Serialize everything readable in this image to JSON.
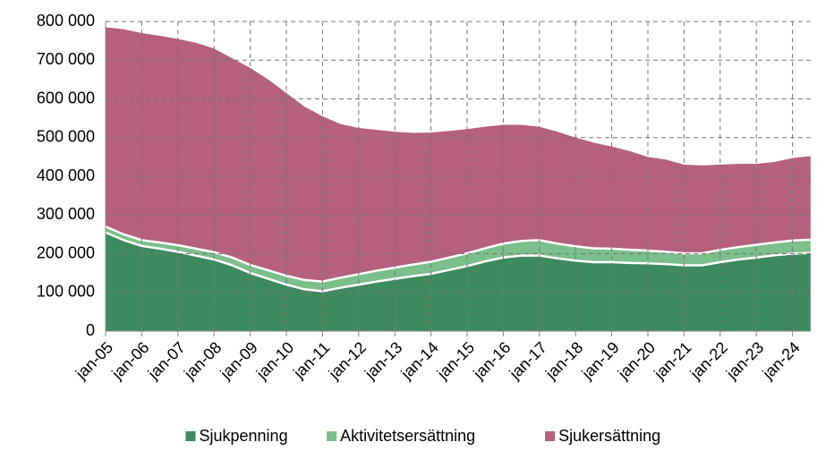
{
  "chart_data": {
    "type": "stacked-area",
    "categories": [
      "jan-05",
      null,
      "jan-06",
      null,
      "jan-07",
      null,
      "jan-08",
      null,
      "jan-09",
      null,
      "jan-10",
      null,
      "jan-11",
      null,
      "jan-12",
      null,
      "jan-13",
      null,
      "jan-14",
      null,
      "jan-15",
      null,
      "jan-16",
      null,
      "jan-17",
      null,
      "jan-18",
      null,
      "jan-19",
      null,
      "jan-20",
      null,
      "jan-21",
      null,
      "jan-22",
      null,
      "jan-23",
      null,
      "jan-24",
      null
    ],
    "series": [
      {
        "name": "Sjukpenning",
        "color": "#3d8a5f",
        "values": [
          255000,
          235000,
          220000,
          213000,
          205000,
          195000,
          185000,
          170000,
          150000,
          135000,
          120000,
          108000,
          103000,
          112000,
          120000,
          128000,
          135000,
          142000,
          148000,
          158000,
          168000,
          180000,
          190000,
          195000,
          195000,
          188000,
          182000,
          178000,
          178000,
          176000,
          175000,
          173000,
          170000,
          170000,
          178000,
          185000,
          190000,
          196000,
          200000,
          202000
        ]
      },
      {
        "name": "Aktivitetsersättning",
        "color": "#7bbf8c",
        "values": [
          15000,
          15000,
          15000,
          16000,
          17000,
          18000,
          19000,
          20000,
          21000,
          22000,
          23000,
          24000,
          25000,
          26000,
          27000,
          28000,
          29000,
          30000,
          31000,
          32000,
          33000,
          34000,
          36000,
          38000,
          40000,
          38000,
          37000,
          36000,
          35000,
          34000,
          33000,
          32000,
          31000,
          31000,
          32000,
          32000,
          33000,
          33000,
          34000,
          34000
        ]
      },
      {
        "name": "Sjukersättning",
        "color": "#b5607d",
        "values": [
          515000,
          530000,
          535000,
          534000,
          533000,
          532000,
          526000,
          515000,
          509000,
          493000,
          472000,
          448000,
          427000,
          397000,
          378000,
          364000,
          351000,
          340000,
          334000,
          327000,
          321000,
          314000,
          307000,
          300000,
          293000,
          289000,
          281000,
          273000,
          264000,
          255000,
          242000,
          238000,
          229000,
          227000,
          220000,
          215000,
          209000,
          208000,
          213000,
          216000
        ]
      }
    ],
    "ylim": [
      0,
      800000
    ],
    "yticks": [
      0,
      {
        "value": 100000,
        "label": "100 000"
      },
      {
        "value": 200000,
        "label": "200 000"
      },
      {
        "value": 300000,
        "label": "300 000"
      },
      {
        "value": 400000,
        "label": "400 000"
      },
      {
        "value": 500000,
        "label": "500 000"
      },
      {
        "value": 600000,
        "label": "600 000"
      },
      {
        "value": 700000,
        "label": "700 000"
      },
      {
        "value": 800000,
        "label": "800 000"
      }
    ],
    "grid": true,
    "legend": "bottom"
  }
}
